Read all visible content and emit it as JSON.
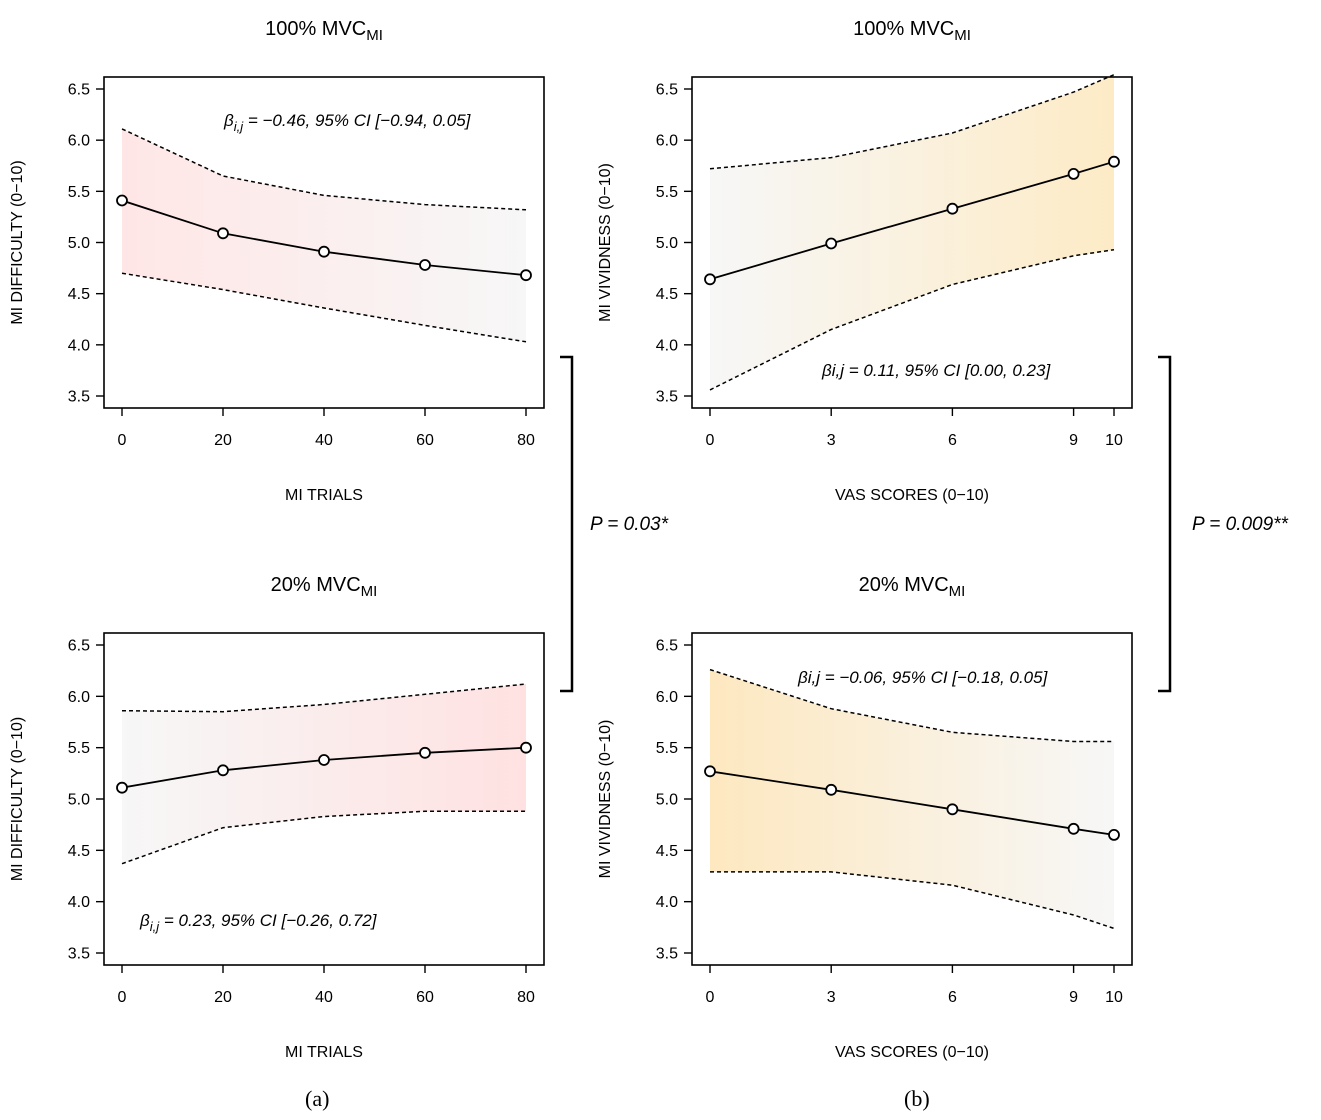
{
  "figure": {
    "panel_a_label": "(a)",
    "panel_b_label": "(b)",
    "p_value_a": "P = 0.03*",
    "p_value_b": "P = 0.009**"
  },
  "chart_data": [
    {
      "id": "a-top",
      "type": "line",
      "title_main": "100% MVC",
      "title_sub": "MI",
      "xlabel": "MI TRIALS",
      "ylabel": "MI DIFFICULTY (0−10)",
      "x": [
        0,
        20,
        40,
        60,
        80
      ],
      "x_ticks": [
        "0",
        "20",
        "40",
        "60",
        "80"
      ],
      "y": [
        5.41,
        5.09,
        4.91,
        4.78,
        4.68
      ],
      "ci_upper": [
        6.11,
        5.65,
        5.46,
        5.37,
        5.32
      ],
      "ci_lower": [
        4.7,
        4.54,
        4.36,
        4.19,
        4.03
      ],
      "ylim": [
        3.5,
        6.5
      ],
      "y_ticks": [
        "3.5",
        "4.0",
        "4.5",
        "5.0",
        "5.5",
        "6.0",
        "6.5"
      ],
      "gradient_from": "#ffe6e6",
      "gradient_to": "#f7f7f7",
      "annotation": {
        "beta": "β",
        "sub": "i,j",
        "text": " = −0.46, 95% CI [−0.94, 0.05]"
      }
    },
    {
      "id": "a-bottom",
      "type": "line",
      "title_main": "20% MVC",
      "title_sub": "MI",
      "xlabel": "MI TRIALS",
      "ylabel": "MI DIFFICULTY (0−10)",
      "x": [
        0,
        20,
        40,
        60,
        80
      ],
      "x_ticks": [
        "0",
        "20",
        "40",
        "60",
        "80"
      ],
      "y": [
        5.11,
        5.28,
        5.38,
        5.45,
        5.5
      ],
      "ci_upper": [
        5.86,
        5.85,
        5.92,
        6.02,
        6.12
      ],
      "ci_lower": [
        4.37,
        4.72,
        4.83,
        4.88,
        4.88
      ],
      "ylim": [
        3.5,
        6.5
      ],
      "y_ticks": [
        "3.5",
        "4.0",
        "4.5",
        "5.0",
        "5.5",
        "6.0",
        "6.5"
      ],
      "gradient_from": "#f7f7f7",
      "gradient_to": "#ffe1e1",
      "annotation": {
        "beta": "β",
        "sub": "i,j",
        "text": " = 0.23, 95% CI [−0.26, 0.72]"
      }
    },
    {
      "id": "b-top",
      "type": "line",
      "title_main": "100% MVC",
      "title_sub": "MI",
      "xlabel": "VAS SCORES (0−10)",
      "ylabel": "MI VIVIDNESS (0−10)",
      "x": [
        0,
        3,
        6,
        9,
        10
      ],
      "x_ticks": [
        "0",
        "3",
        "6",
        "9",
        "10"
      ],
      "y": [
        4.64,
        4.99,
        5.33,
        5.67,
        5.79
      ],
      "ci_upper": [
        5.72,
        5.83,
        6.07,
        6.47,
        6.64
      ],
      "ci_lower": [
        3.56,
        4.15,
        4.59,
        4.87,
        4.93
      ],
      "ylim": [
        3.5,
        6.5
      ],
      "y_ticks": [
        "3.5",
        "4.0",
        "4.5",
        "5.0",
        "5.5",
        "6.0",
        "6.5"
      ],
      "gradient_from": "#f7f7f7",
      "gradient_to": "#fdebc6",
      "annotation": {
        "beta": "βi,j",
        "sub": "",
        "text": " = 0.11, 95% CI [0.00, 0.23]"
      }
    },
    {
      "id": "b-bottom",
      "type": "line",
      "title_main": "20% MVC",
      "title_sub": "MI",
      "xlabel": "VAS SCORES (0−10)",
      "ylabel": "MI VIVIDNESS (0−10)",
      "x": [
        0,
        3,
        6,
        9,
        10
      ],
      "x_ticks": [
        "0",
        "3",
        "6",
        "9",
        "10"
      ],
      "y": [
        5.27,
        5.09,
        4.9,
        4.71,
        4.65
      ],
      "ci_upper": [
        6.26,
        5.88,
        5.65,
        5.56,
        5.56
      ],
      "ci_lower": [
        4.29,
        4.29,
        4.16,
        3.87,
        3.74
      ],
      "ylim": [
        3.5,
        6.5
      ],
      "y_ticks": [
        "3.5",
        "4.0",
        "4.5",
        "5.0",
        "5.5",
        "6.0",
        "6.5"
      ],
      "gradient_from": "#fde8c0",
      "gradient_to": "#f7f7f7",
      "annotation": {
        "beta": "βi,j",
        "sub": "",
        "text": " = −0.06, 95% CI [−0.18, 0.05]"
      }
    }
  ]
}
